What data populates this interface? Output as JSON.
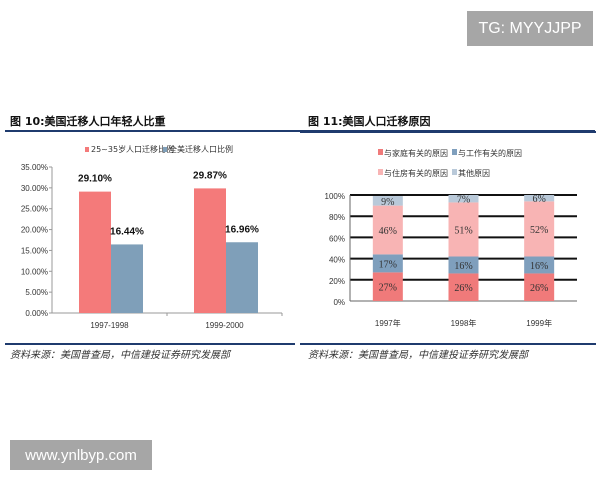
{
  "watermarks": {
    "top": "TG: MYYJJPP",
    "bottom": "www.ynlbyp.com"
  },
  "chart_data": [
    {
      "type": "bar",
      "title": "图 10:美国迁移人口年轻人比重",
      "categories": [
        "1997-1998",
        "1999-2000"
      ],
      "series": [
        {
          "name": "25~35岁人口迁移比例",
          "values": [
            29.1,
            29.87
          ],
          "labels": [
            "29.10%",
            "29.87%"
          ],
          "color": "#f47a7a"
        },
        {
          "name": "全美迁移人口比例",
          "values": [
            16.44,
            16.96
          ],
          "labels": [
            "16.44%",
            "16.96%"
          ],
          "color": "#7f9fb9"
        }
      ],
      "ylim": [
        0,
        35
      ],
      "yticks": [
        "0.00%",
        "5.00%",
        "10.00%",
        "15.00%",
        "20.00%",
        "25.00%",
        "30.00%",
        "35.00%"
      ],
      "legend": "top",
      "grid": false,
      "source": "资料来源：美国普查局，中信建投证券研究发展部"
    },
    {
      "type": "bar",
      "stacked": true,
      "title": "图 11:美国人口迁移原因",
      "categories": [
        "1997年",
        "1998年",
        "1999年"
      ],
      "series": [
        {
          "name": "与家庭有关的原因",
          "values": [
            27,
            26,
            26
          ],
          "color": "#f07a7a"
        },
        {
          "name": "与工作有关的原因",
          "values": [
            17,
            16,
            16
          ],
          "color": "#7f9fbd"
        },
        {
          "name": "与住房有关的原因",
          "values": [
            46,
            51,
            52
          ],
          "color": "#f8b4b4"
        },
        {
          "name": "其他原因",
          "values": [
            9,
            7,
            6
          ],
          "color": "#b9c9d9"
        }
      ],
      "ylim": [
        0,
        100
      ],
      "yticks": [
        "0%",
        "20%",
        "40%",
        "60%",
        "80%",
        "100%"
      ],
      "legend": "top",
      "grid": true,
      "source": "资料来源：美国普查局，中信建投证券研究发展部"
    }
  ]
}
